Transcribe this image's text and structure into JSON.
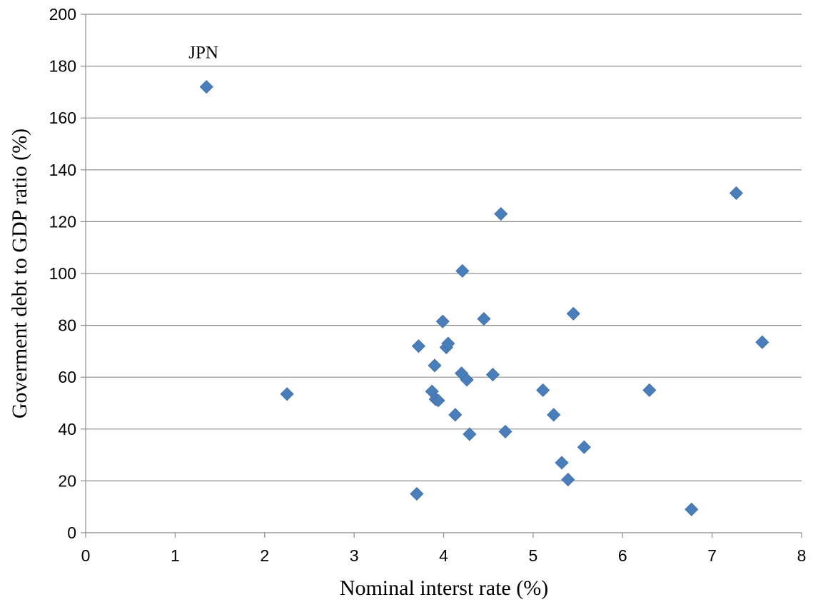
{
  "chart_data": {
    "type": "scatter",
    "title": "",
    "xlabel": "Nominal interst rate (%)",
    "ylabel": "Goverment debt to GDP ratio (%)",
    "xlim": [
      0,
      8
    ],
    "ylim": [
      0,
      200
    ],
    "xticks": [
      0,
      1,
      2,
      3,
      4,
      5,
      6,
      7,
      8
    ],
    "yticks": [
      0,
      20,
      40,
      60,
      80,
      100,
      120,
      140,
      160,
      180,
      200
    ],
    "grid": "horizontal",
    "marker_color": "#4a7ebb",
    "points": [
      {
        "x": 1.35,
        "y": 172
      },
      {
        "x": 2.25,
        "y": 53.5
      },
      {
        "x": 3.7,
        "y": 15
      },
      {
        "x": 3.72,
        "y": 72
      },
      {
        "x": 3.87,
        "y": 54.5
      },
      {
        "x": 3.9,
        "y": 64.5
      },
      {
        "x": 3.91,
        "y": 51.5
      },
      {
        "x": 3.94,
        "y": 51
      },
      {
        "x": 3.99,
        "y": 81.5
      },
      {
        "x": 4.03,
        "y": 71.5
      },
      {
        "x": 4.05,
        "y": 73
      },
      {
        "x": 4.13,
        "y": 45.5
      },
      {
        "x": 4.2,
        "y": 61.5
      },
      {
        "x": 4.21,
        "y": 101
      },
      {
        "x": 4.26,
        "y": 59
      },
      {
        "x": 4.29,
        "y": 38
      },
      {
        "x": 4.45,
        "y": 82.5
      },
      {
        "x": 4.55,
        "y": 61
      },
      {
        "x": 4.64,
        "y": 123
      },
      {
        "x": 4.69,
        "y": 39
      },
      {
        "x": 5.11,
        "y": 55
      },
      {
        "x": 5.23,
        "y": 45.5
      },
      {
        "x": 5.32,
        "y": 27
      },
      {
        "x": 5.39,
        "y": 20.5
      },
      {
        "x": 5.45,
        "y": 84.5
      },
      {
        "x": 5.57,
        "y": 33
      },
      {
        "x": 6.3,
        "y": 55
      },
      {
        "x": 6.77,
        "y": 9
      },
      {
        "x": 7.27,
        "y": 131
      },
      {
        "x": 7.56,
        "y": 73.5
      }
    ],
    "annotations": [
      {
        "text": "JPN",
        "x": 1.35,
        "y": 172
      }
    ]
  }
}
